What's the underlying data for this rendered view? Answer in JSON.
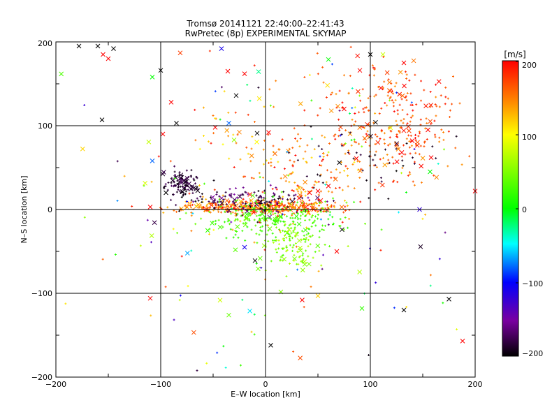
{
  "chart_data": {
    "type": "scatter",
    "title": "Tromsø 20141121 22:40:00–22:41:43",
    "subtitle": "RwPretec (8p) EXPERIMENTAL SKYMAP",
    "xlabel": "E–W location [km]",
    "ylabel": "N–S location [km]",
    "xlim": [
      -200,
      200
    ],
    "ylim": [
      -200,
      200
    ],
    "x_ticks": [
      "−200",
      "−100",
      "0",
      "100",
      "200"
    ],
    "y_ticks": [
      "−200",
      "−100",
      "0",
      "100",
      "200"
    ],
    "gridlines_km": [
      -100,
      0,
      100
    ],
    "grid": true,
    "colorbar": {
      "label": "[m/s]",
      "range": [
        -200,
        200
      ],
      "ticks": [
        "−200",
        "−100",
        "0",
        "100",
        "200"
      ],
      "colormap": "black-purple-blue-cyan-green-yellow-orange-red"
    },
    "marker_legend": "small '+' markers and larger '×' markers; color encodes velocity",
    "clusters": [
      {
        "cx": -10,
        "cy": 3,
        "sx": 40,
        "sy": 4,
        "n": 380,
        "vmin": 120,
        "vmax": 200
      },
      {
        "cx": -80,
        "cy": 28,
        "sx": 7,
        "sy": 9,
        "n": 110,
        "vmin": -200,
        "vmax": -170
      },
      {
        "cx": -10,
        "cy": 12,
        "sx": 35,
        "sy": 8,
        "n": 140,
        "vmin": -200,
        "vmax": -150
      },
      {
        "cx": 5,
        "cy": -12,
        "sx": 32,
        "sy": 12,
        "n": 230,
        "vmin": 15,
        "vmax": 45
      },
      {
        "cx": 25,
        "cy": -45,
        "sx": 15,
        "sy": 15,
        "n": 110,
        "vmin": 30,
        "vmax": 75
      },
      {
        "cx": 40,
        "cy": 30,
        "sx": 25,
        "sy": 25,
        "n": 90,
        "vmin": 110,
        "vmax": 200
      },
      {
        "cx": 120,
        "cy": 120,
        "sx": 35,
        "sy": 30,
        "n": 200,
        "vmin": 140,
        "vmax": 200
      },
      {
        "cx": 120,
        "cy": 70,
        "sx": 30,
        "sy": 25,
        "n": 90,
        "vmin": 140,
        "vmax": 200
      },
      {
        "cx": 10,
        "cy": 70,
        "sx": 40,
        "sy": 40,
        "n": 110,
        "vmin": 100,
        "vmax": 200
      },
      {
        "cx": 100,
        "cy": 60,
        "sx": 35,
        "sy": 20,
        "n": 40,
        "vmin": -200,
        "vmax": -180
      },
      {
        "cx": 0,
        "cy": 0,
        "sx": 120,
        "sy": 110,
        "n": 180,
        "vmin": -200,
        "vmax": 200
      }
    ],
    "cross_points": [
      {
        "x": -178,
        "y": 195,
        "v": -200
      },
      {
        "x": -160,
        "y": 195,
        "v": -200
      },
      {
        "x": -145,
        "y": 192,
        "v": -200
      },
      {
        "x": -155,
        "y": 185,
        "v": 200
      },
      {
        "x": -150,
        "y": 180,
        "v": 200
      },
      {
        "x": -100,
        "y": 166,
        "v": -200
      },
      {
        "x": -108,
        "y": 158,
        "v": 0
      },
      {
        "x": -90,
        "y": 128,
        "v": 200
      },
      {
        "x": -156,
        "y": 107,
        "v": -200
      },
      {
        "x": -85,
        "y": 103,
        "v": -200
      },
      {
        "x": -98,
        "y": 90,
        "v": 200
      },
      {
        "x": -108,
        "y": 58,
        "v": -80
      },
      {
        "x": -48,
        "y": 98,
        "v": 200
      },
      {
        "x": -35,
        "y": 103,
        "v": -80
      },
      {
        "x": -36,
        "y": 165,
        "v": 200
      },
      {
        "x": -28,
        "y": 136,
        "v": -200
      },
      {
        "x": -20,
        "y": 162,
        "v": 200
      },
      {
        "x": -42,
        "y": 192,
        "v": -110
      },
      {
        "x": -30,
        "y": 83,
        "v": 60
      },
      {
        "x": -8,
        "y": 91,
        "v": -200
      },
      {
        "x": 3,
        "y": 92,
        "v": 200
      },
      {
        "x": 60,
        "y": 179,
        "v": 0
      },
      {
        "x": 100,
        "y": 185,
        "v": -200
      },
      {
        "x": 112,
        "y": 185,
        "v": 80
      },
      {
        "x": 90,
        "y": 166,
        "v": 200
      },
      {
        "x": 110,
        "y": 145,
        "v": 200
      },
      {
        "x": 132,
        "y": 175,
        "v": 200
      },
      {
        "x": 75,
        "y": 120,
        "v": 200
      },
      {
        "x": 155,
        "y": 95,
        "v": 200
      },
      {
        "x": 140,
        "y": 82,
        "v": 200
      },
      {
        "x": 158,
        "y": 62,
        "v": 200
      },
      {
        "x": 157,
        "y": 45,
        "v": 0
      },
      {
        "x": 105,
        "y": 104,
        "v": -200
      },
      {
        "x": 147,
        "y": 0,
        "v": -120
      },
      {
        "x": 130,
        "y": 68,
        "v": 200
      },
      {
        "x": 200,
        "y": 22,
        "v": 200
      },
      {
        "x": -110,
        "y": -106,
        "v": 200
      },
      {
        "x": -110,
        "y": 3,
        "v": 200
      },
      {
        "x": -35,
        "y": -126,
        "v": 40
      },
      {
        "x": -10,
        "y": -61,
        "v": -200
      },
      {
        "x": -20,
        "y": -45,
        "v": -110
      },
      {
        "x": 5,
        "y": -162,
        "v": -200
      },
      {
        "x": 35,
        "y": -108,
        "v": 200
      },
      {
        "x": 50,
        "y": -103,
        "v": 120
      },
      {
        "x": 68,
        "y": -50,
        "v": 200
      },
      {
        "x": 73,
        "y": -24,
        "v": -200
      },
      {
        "x": 92,
        "y": -118,
        "v": 20
      },
      {
        "x": 132,
        "y": -120,
        "v": -200
      },
      {
        "x": 175,
        "y": -107,
        "v": -200
      },
      {
        "x": 188,
        "y": -157,
        "v": 200
      },
      {
        "x": 60,
        "y": 28,
        "v": 200
      },
      {
        "x": 50,
        "y": 22,
        "v": 200
      },
      {
        "x": 42,
        "y": 20,
        "v": 200
      },
      {
        "x": -95,
        "y": 20,
        "v": -200
      }
    ]
  }
}
